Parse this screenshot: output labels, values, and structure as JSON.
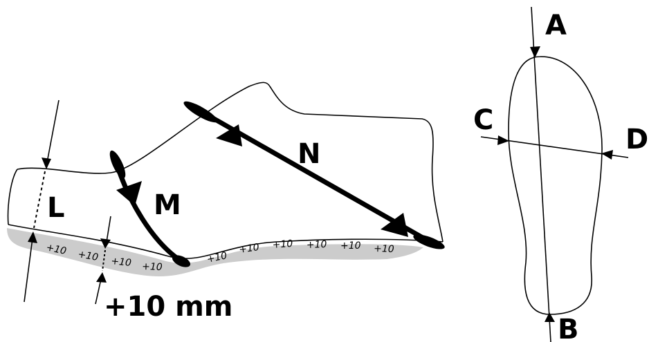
{
  "side_view": {
    "measures": [
      "L",
      "M",
      "N"
    ],
    "allowance_marks": [
      "+10",
      "+10",
      "+10",
      "+10",
      "+10",
      "+10",
      "+10",
      "+10",
      "+10",
      "+10"
    ],
    "allowance_note": "+10 mm"
  },
  "sole_view": {
    "points": [
      "A",
      "B",
      "C",
      "D"
    ]
  }
}
